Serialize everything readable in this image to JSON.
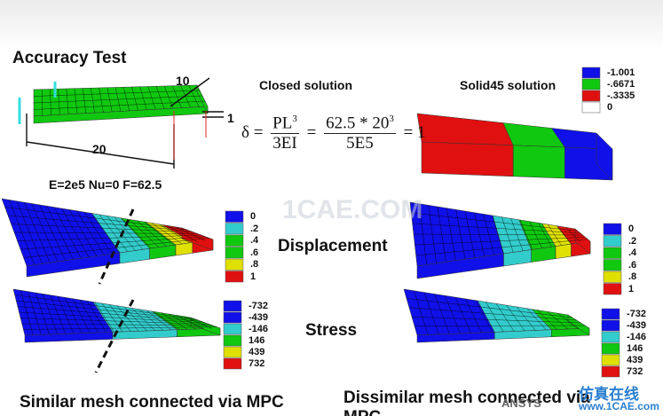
{
  "title": "Accuracy Test",
  "diagram": {
    "width_label": "10",
    "thickness_label": "1",
    "length_label": "20",
    "properties": "E=2e5 Nu=0 F=62.5"
  },
  "closed_solution": {
    "heading": "Closed solution",
    "formula": {
      "lhs": "δ",
      "eq1": "=",
      "num1": "PL",
      "num1_exp": "3",
      "den1": "3EI",
      "eq2": "=",
      "num2": "62.5 * 20",
      "num2_exp": "3",
      "den2": "5E5",
      "result": "= 1"
    }
  },
  "solid45": {
    "heading": "Solid45 solution",
    "legend": [
      "-1.001",
      "-.6671",
      "-.3335",
      "0"
    ]
  },
  "rows": [
    {
      "label": "Displacement",
      "left_legend": [
        "0",
        ".2",
        ".4",
        ".6",
        ".8",
        "1"
      ],
      "right_legend": [
        "0",
        ".2",
        ".4",
        ".6",
        ".8",
        "1"
      ]
    },
    {
      "label": "Stress",
      "left_legend": [
        "-732",
        "-439",
        "-146",
        "146",
        "439",
        "732"
      ],
      "right_legend": [
        "-732",
        "-439",
        "-146",
        "146",
        "439",
        "732"
      ]
    }
  ],
  "captions": {
    "left": "Similar mesh connected via MPC",
    "right": "Dissimilar mesh connected via MPC"
  },
  "watermarks": {
    "center": "1CAE.COM",
    "logo": "ANSYS",
    "brand": "仿真在线",
    "site": "www.1CAE.com"
  }
}
